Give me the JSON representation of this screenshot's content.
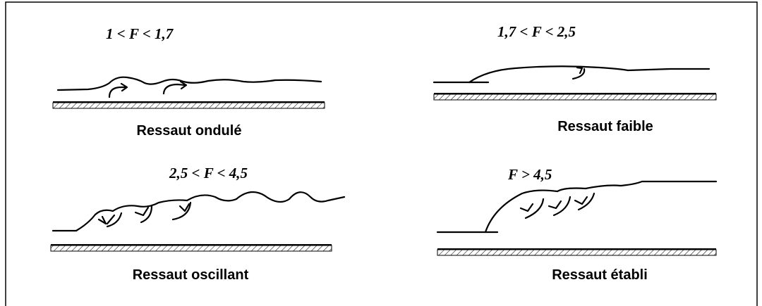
{
  "panels": [
    {
      "condition": "1 < F < 1,7",
      "caption": "Ressaut ondulé"
    },
    {
      "condition": "1,7 < F < 2,5",
      "caption": "Ressaut faible"
    },
    {
      "condition": "2,5 < F < 4,5",
      "caption": "Ressaut oscillant"
    },
    {
      "condition": "F > 4,5",
      "caption": "Ressaut établi"
    }
  ]
}
